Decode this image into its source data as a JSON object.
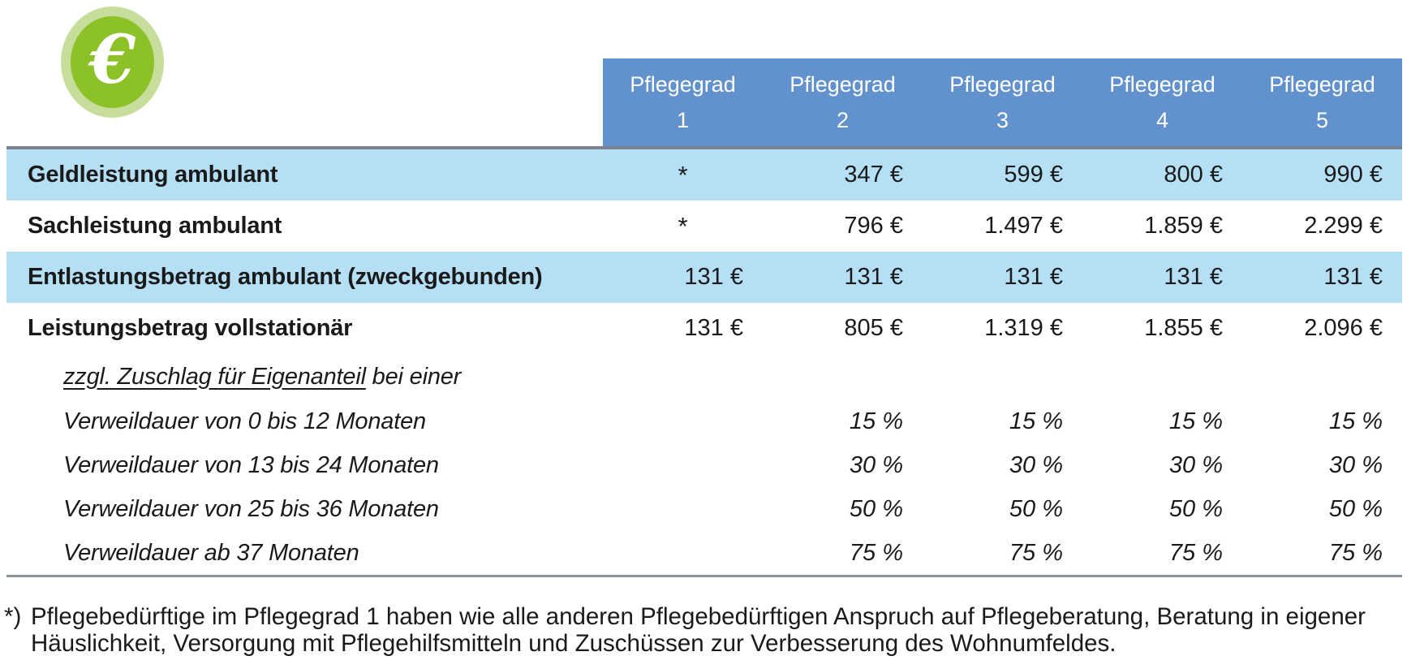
{
  "icon": {
    "symbol": "€"
  },
  "table": {
    "headers": [
      {
        "title": "Pflegegrad",
        "number": "1"
      },
      {
        "title": "Pflegegrad",
        "number": "2"
      },
      {
        "title": "Pflegegrad",
        "number": "3"
      },
      {
        "title": "Pflegegrad",
        "number": "4"
      },
      {
        "title": "Pflegegrad",
        "number": "5"
      }
    ],
    "rows": [
      {
        "label": "Geldleistung ambulant",
        "values": [
          "*",
          "347 €",
          "599 €",
          "800 €",
          "990 €"
        ]
      },
      {
        "label": "Sachleistung ambulant",
        "values": [
          "*",
          "796 €",
          "1.497 €",
          "1.859 €",
          "2.299 €"
        ]
      },
      {
        "label": "Entlastungsbetrag ambulant (zweckgebunden)",
        "values": [
          "131 €",
          "131 €",
          "131 €",
          "131 €",
          "131 €"
        ]
      },
      {
        "label": "Leistungsbetrag vollstationär",
        "values": [
          "131 €",
          "805 €",
          "1.319 €",
          "1.855 €",
          "2.096 €"
        ]
      }
    ],
    "surcharge": {
      "intro_underlined": "zzgl. Zuschlag für Eigenanteil",
      "intro_rest": " bei einer",
      "rows": [
        {
          "label": "Verweildauer von 0 bis 12 Monaten",
          "values": [
            "",
            "15 %",
            "15 %",
            "15 %",
            "15 %"
          ]
        },
        {
          "label": "Verweildauer von 13 bis 24 Monaten",
          "values": [
            "",
            "30 %",
            "30 %",
            "30 %",
            "30 %"
          ]
        },
        {
          "label": "Verweildauer von 25 bis 36 Monaten",
          "values": [
            "",
            "50 %",
            "50 %",
            "50 %",
            "50 %"
          ]
        },
        {
          "label": "Verweildauer ab 37 Monaten",
          "values": [
            "",
            "75 %",
            "75 %",
            "75 %",
            "75 %"
          ]
        }
      ]
    }
  },
  "footnote": {
    "marker": "*)",
    "line1": "Pflegebedürftige im Pflegegrad 1 haben wie alle anderen Pflegebedürftigen Anspruch auf Pflegeberatung, Beratung in eigener",
    "line2": "Häuslichkeit, Versorgung mit Pflegehilfsmitteln und Zuschüssen zur Verbesserung des Wohnumfeldes."
  },
  "colors": {
    "header_blue": "#6292cd",
    "row_blue": "#b4dff5",
    "icon_inner_green": "#8cc127",
    "icon_outer_green": "#c6dd9b",
    "rule_dark": "#79848f",
    "rule_light": "#8d9299",
    "text_color": "#1a1a1a"
  }
}
